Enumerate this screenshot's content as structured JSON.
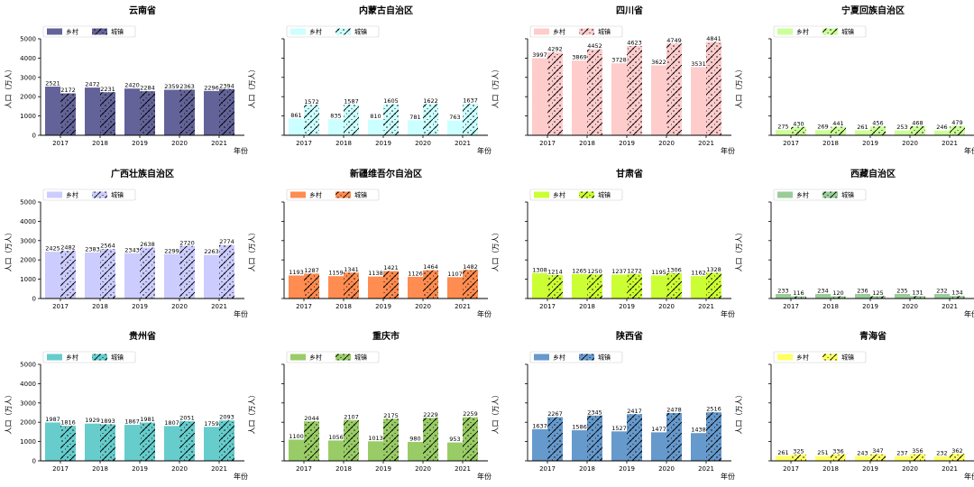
{
  "chart_data": {
    "type": "bar",
    "layout": "grid 3x4",
    "categories": [
      "2017",
      "2018",
      "2019",
      "2020",
      "2021"
    ],
    "xlabel": "年份",
    "ylabel": "人口（万人）",
    "yticks": [
      0,
      1000,
      2000,
      3000,
      4000,
      5000
    ],
    "ylim": [
      0,
      5000
    ],
    "series_names": [
      "乡村",
      "城镇"
    ],
    "legend_position": "top-left",
    "panels": [
      {
        "title": "云南省",
        "color": "#636399",
        "rural": [
          2521,
          2472,
          2420,
          2359,
          2296
        ],
        "urban": [
          2172,
          2231,
          2284,
          2363,
          2394
        ]
      },
      {
        "title": "内蒙古自治区",
        "color": "#ccffff",
        "rural": [
          861,
          835,
          810,
          781,
          763
        ],
        "urban": [
          1572,
          1587,
          1605,
          1622,
          1637
        ]
      },
      {
        "title": "四川省",
        "color": "#ffcccc",
        "rural": [
          3997,
          3869,
          3728,
          3622,
          3531
        ],
        "urban": [
          4292,
          4452,
          4623,
          4749,
          4841
        ]
      },
      {
        "title": "宁夏回族自治区",
        "color": "#ccff99",
        "rural": [
          275,
          269,
          261,
          253,
          246
        ],
        "urban": [
          430,
          441,
          456,
          468,
          479
        ]
      },
      {
        "title": "广西壮族自治区",
        "color": "#ccccff",
        "rural": [
          2425,
          2383,
          2343,
          2299,
          2263
        ],
        "urban": [
          2482,
          2564,
          2638,
          2720,
          2774
        ]
      },
      {
        "title": "新疆维吾尔自治区",
        "color": "#ff8c50",
        "rural": [
          1193,
          1159,
          1138,
          1126,
          1107
        ],
        "urban": [
          1287,
          1341,
          1421,
          1464,
          1482
        ]
      },
      {
        "title": "甘肃省",
        "color": "#ccff33",
        "rural": [
          1308,
          1265,
          1237,
          1195,
          1162
        ],
        "urban": [
          1214,
          1250,
          1272,
          1306,
          1328
        ]
      },
      {
        "title": "西藏自治区",
        "color": "#99cc99",
        "rural": [
          233,
          234,
          236,
          235,
          232
        ],
        "urban": [
          116,
          120,
          125,
          131,
          134
        ]
      },
      {
        "title": "贵州省",
        "color": "#66cccc",
        "rural": [
          1987,
          1929,
          1867,
          1807,
          1759
        ],
        "urban": [
          1816,
          1893,
          1981,
          2051,
          2093
        ]
      },
      {
        "title": "重庆市",
        "color": "#99cc66",
        "rural": [
          1100,
          1056,
          1013,
          980,
          953
        ],
        "urban": [
          2044,
          2107,
          2175,
          2229,
          2259
        ]
      },
      {
        "title": "陕西省",
        "color": "#6699cc",
        "rural": [
          1637,
          1586,
          1527,
          1477,
          1438
        ],
        "urban": [
          2267,
          2345,
          2417,
          2478,
          2516
        ]
      },
      {
        "title": "青海省",
        "color": "#ffff66",
        "rural": [
          261,
          251,
          243,
          237,
          232
        ],
        "urban": [
          325,
          336,
          347,
          356,
          362
        ]
      }
    ]
  }
}
